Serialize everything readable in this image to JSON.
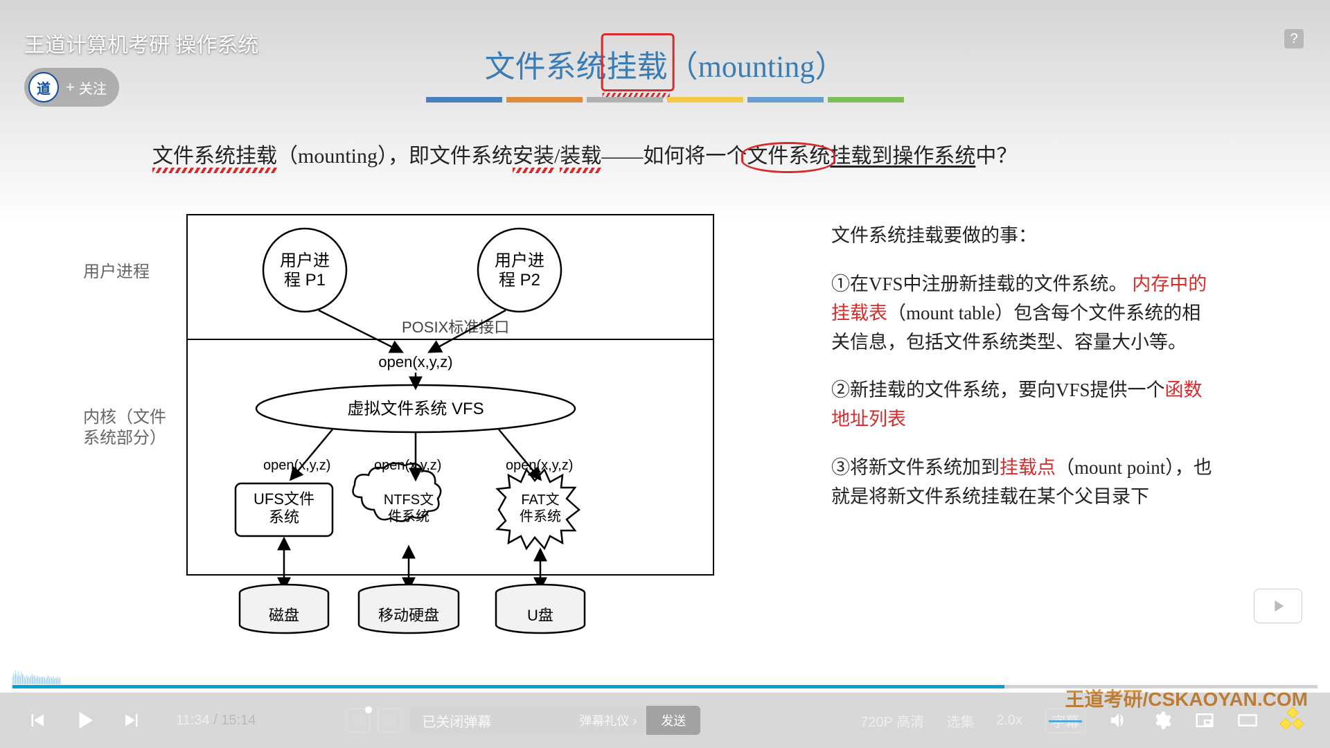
{
  "video": {
    "title": "王道计算机考研 操作系统",
    "follow_label": "关注",
    "follow_plus": "+",
    "current_time": "11:34",
    "total_time": "15:14",
    "progress_percent": 76,
    "watermark": "王道考研/CSKAOYAN.COM"
  },
  "player": {
    "quality_label": "720P 高清",
    "episodes_label": "选集",
    "speed_label": "2.0x",
    "subtitle_pill_label": "字幕",
    "danmu_placeholder": "已关闭弹幕",
    "danmu_etiquette_label": "弹幕礼仪 ›",
    "danmu_send_label": "发送",
    "heat_bars": [
      [
        0,
        22
      ],
      [
        2,
        34
      ],
      [
        4,
        28
      ],
      [
        6,
        40
      ],
      [
        8,
        30
      ],
      [
        10,
        25
      ],
      [
        12,
        38
      ],
      [
        14,
        27
      ],
      [
        16,
        24
      ],
      [
        18,
        36
      ],
      [
        20,
        30
      ],
      [
        22,
        28
      ],
      [
        24,
        22
      ],
      [
        26,
        18
      ],
      [
        28,
        28
      ],
      [
        30,
        20
      ],
      [
        32,
        26
      ],
      [
        34,
        18
      ],
      [
        36,
        22
      ],
      [
        38,
        26
      ],
      [
        40,
        30
      ],
      [
        42,
        22
      ],
      [
        44,
        28
      ],
      [
        46,
        24
      ],
      [
        48,
        18
      ],
      [
        50,
        26
      ],
      [
        52,
        20
      ],
      [
        54,
        24
      ],
      [
        56,
        18
      ],
      [
        58,
        22
      ],
      [
        60,
        20
      ],
      [
        62,
        24
      ],
      [
        64,
        18
      ],
      [
        66,
        22
      ],
      [
        68,
        16
      ],
      [
        70,
        20
      ],
      [
        72,
        26
      ],
      [
        74,
        24
      ],
      [
        76,
        18
      ],
      [
        78,
        20
      ],
      [
        80,
        22
      ],
      [
        82,
        18
      ],
      [
        84,
        24
      ],
      [
        86,
        16
      ],
      [
        88,
        20
      ],
      [
        90,
        18
      ],
      [
        92,
        22
      ],
      [
        94,
        16
      ],
      [
        96,
        20
      ],
      [
        98,
        18
      ]
    ],
    "heat_color": "#6fb9e4",
    "progress_color": "#00a1d6"
  },
  "slide": {
    "heading_prefix": "文件系统",
    "heading_boxed": "挂载",
    "heading_suffix": "（mounting）",
    "bar_colors": [
      "#4a7fc4",
      "#e08b3e",
      "#b0b0b0",
      "#f2c94a",
      "#6a9dd0",
      "#7bbf5c"
    ],
    "subtitle": {
      "p1": "文件系统挂载",
      "p2": "（mounting），即文件系统",
      "p3": "安装",
      "p4": "/",
      "p5": "装载",
      "p6": "——如何将一个",
      "p7": "文件系统",
      "p8": "挂载到",
      "p9": "操作系统",
      "p10": "中？"
    }
  },
  "right_text": {
    "title": "文件系统挂载要做的事：",
    "item1_prefix": "①在VFS中注册新挂载的文件系统。",
    "item1_hl": "内存中的挂载表",
    "item1_after": "（mount table）包含每个文件系统的相关信息，包括文件系统类型、容量大小等。",
    "item2_prefix": "②新挂载的文件系统，要向VFS提供一个",
    "item2_hl": "函数地址列表",
    "item3_prefix": "③将新文件系统加到",
    "item3_hl": "挂载点",
    "item3_after": "（mount point），也就是将新文件系统挂载在某个父目录下"
  },
  "diagram": {
    "row_labels": {
      "user": "用户进程",
      "kernel": "内核（文件系统部分）"
    },
    "nodes": {
      "p1": "用户进\n程 P1",
      "p2": "用户进\n程 P2",
      "posix_label": "POSIX标准接口",
      "open_call": "open(x,y,z)",
      "vfs": "虚拟文件系统 VFS",
      "ufs": "UFS文件\n系统",
      "ntfs": "NTFS文\n件系统",
      "fat": "FAT文\n件系统",
      "disk1": "磁盘",
      "disk2": "移动硬盘",
      "disk3": "U盘"
    },
    "colors": {
      "stroke": "#000000",
      "text": "#333333"
    }
  }
}
